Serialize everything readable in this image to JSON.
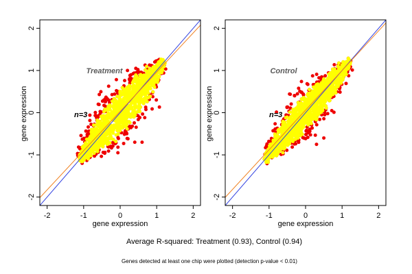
{
  "chart_data": [
    {
      "type": "scatter",
      "title": "Treatment",
      "annotation": "n=3",
      "xlabel": "gene expression",
      "ylabel": "gene expression",
      "xlim": [
        -2.2,
        2.2
      ],
      "ylim": [
        -2.2,
        2.2
      ],
      "xticks": [
        -2,
        -1,
        0,
        1,
        2
      ],
      "yticks": [
        -2,
        -1,
        0,
        1,
        2
      ],
      "grid": false,
      "reference_lines": [
        {
          "name": "identity",
          "slope": 1.0,
          "intercept": 0.0,
          "color": "#3040e0"
        },
        {
          "name": "fit",
          "slope": 0.93,
          "intercept": 0.03,
          "color": "#f08020"
        }
      ],
      "cloud": {
        "center": [
          0,
          0
        ],
        "major_extent": [
          -1.1,
          1.2
        ],
        "minor_spread": 0.23,
        "outliers": [
          {
            "x": -0.6,
            "y": 0.2
          },
          {
            "x": 0.4,
            "y": -0.7
          },
          {
            "x": 0.6,
            "y": -0.7
          },
          {
            "x": 0.5,
            "y": 0.85
          },
          {
            "x": 0.2,
            "y": 1.0
          },
          {
            "x": -0.8,
            "y": -0.9
          }
        ]
      },
      "series": [
        {
          "color": "#0000ee",
          "values": "low-expression tail"
        },
        {
          "color": "#ee0000",
          "values": "variable outer points"
        },
        {
          "color": "#ffff00",
          "values": "main body"
        }
      ]
    },
    {
      "type": "scatter",
      "title": "Control",
      "annotation": "n=3",
      "xlabel": "gene expression",
      "ylabel": "gene expression",
      "xlim": [
        -2.2,
        2.2
      ],
      "ylim": [
        -2.2,
        2.2
      ],
      "xticks": [
        -2,
        -1,
        0,
        1,
        2
      ],
      "yticks": [
        -2,
        -1,
        0,
        1,
        2
      ],
      "grid": false,
      "reference_lines": [
        {
          "name": "identity",
          "slope": 1.0,
          "intercept": 0.0,
          "color": "#3040e0"
        },
        {
          "name": "fit",
          "slope": 0.94,
          "intercept": 0.06,
          "color": "#f08020"
        }
      ],
      "cloud": {
        "center": [
          0,
          0
        ],
        "major_extent": [
          -1.1,
          1.2
        ],
        "minor_spread": 0.2,
        "outliers": [
          {
            "x": -0.3,
            "y": 0.4
          },
          {
            "x": 0.3,
            "y": -0.75
          },
          {
            "x": 0.5,
            "y": -0.6
          },
          {
            "x": 0.85,
            "y": 0.6
          },
          {
            "x": -1.0,
            "y": -1.05
          }
        ]
      },
      "series": [
        {
          "color": "#0000ee",
          "values": "low-expression tail"
        },
        {
          "color": "#ee0000",
          "values": "variable outer points"
        },
        {
          "color": "#ffff00",
          "values": "main body"
        }
      ]
    }
  ],
  "caption": "Average R-squared: Treatment (0.93), Control (0.94)",
  "footnote": "Genes detected at least one chip were plotted (detection p-value < 0.01)",
  "colors": {
    "identity_line": "#3040e0",
    "fit_line": "#f08020",
    "low_points": "#0000ee",
    "outer_points": "#ee0000",
    "body_points": "#ffff00",
    "panel_title": "#5a5a5a"
  }
}
